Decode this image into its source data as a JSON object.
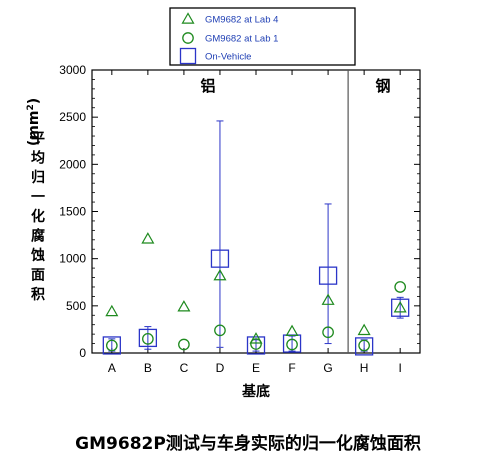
{
  "chart_data": {
    "type": "scatter",
    "caption": "GM9682P测试与车身实际的归一化腐蚀面积",
    "xlabel": "基底",
    "ylabel_chars": [
      "平",
      "均",
      "归",
      "一",
      "化",
      "腐",
      "蚀",
      "面",
      "积"
    ],
    "ylabel_unit_prefix": "(mm",
    "ylabel_unit_sup": "2",
    "ylabel_unit_suffix": ")",
    "ylim": [
      0,
      3000
    ],
    "yticks": [
      0,
      500,
      1000,
      1500,
      2000,
      2500,
      3000
    ],
    "categories": [
      "A",
      "B",
      "C",
      "D",
      "E",
      "F",
      "G",
      "H",
      "I"
    ],
    "regions": [
      {
        "label": "铝",
        "categories": [
          "A",
          "B",
          "C",
          "D",
          "E",
          "F",
          "G"
        ]
      },
      {
        "label": "钢",
        "categories": [
          "H",
          "I"
        ]
      }
    ],
    "legend_position": "top-center",
    "series": [
      {
        "name": "GM9682 at Lab 4",
        "marker": "triangle",
        "color": "#1e8a1e",
        "values": [
          440,
          1210,
          490,
          820,
          150,
          230,
          560,
          240,
          480
        ]
      },
      {
        "name": "GM9682 at Lab 1",
        "marker": "circle",
        "color": "#1e8a1e",
        "values": [
          80,
          150,
          90,
          240,
          95,
          90,
          220,
          80,
          700
        ]
      },
      {
        "name": "On-Vehicle",
        "marker": "square",
        "color": "#2b35c8",
        "values": [
          80,
          160,
          null,
          1000,
          80,
          100,
          820,
          70,
          480
        ],
        "error_low": [
          20,
          40,
          null,
          60,
          20,
          20,
          100,
          20,
          370
        ],
        "error_high": [
          150,
          280,
          null,
          2460,
          140,
          180,
          1580,
          140,
          590
        ]
      }
    ]
  }
}
